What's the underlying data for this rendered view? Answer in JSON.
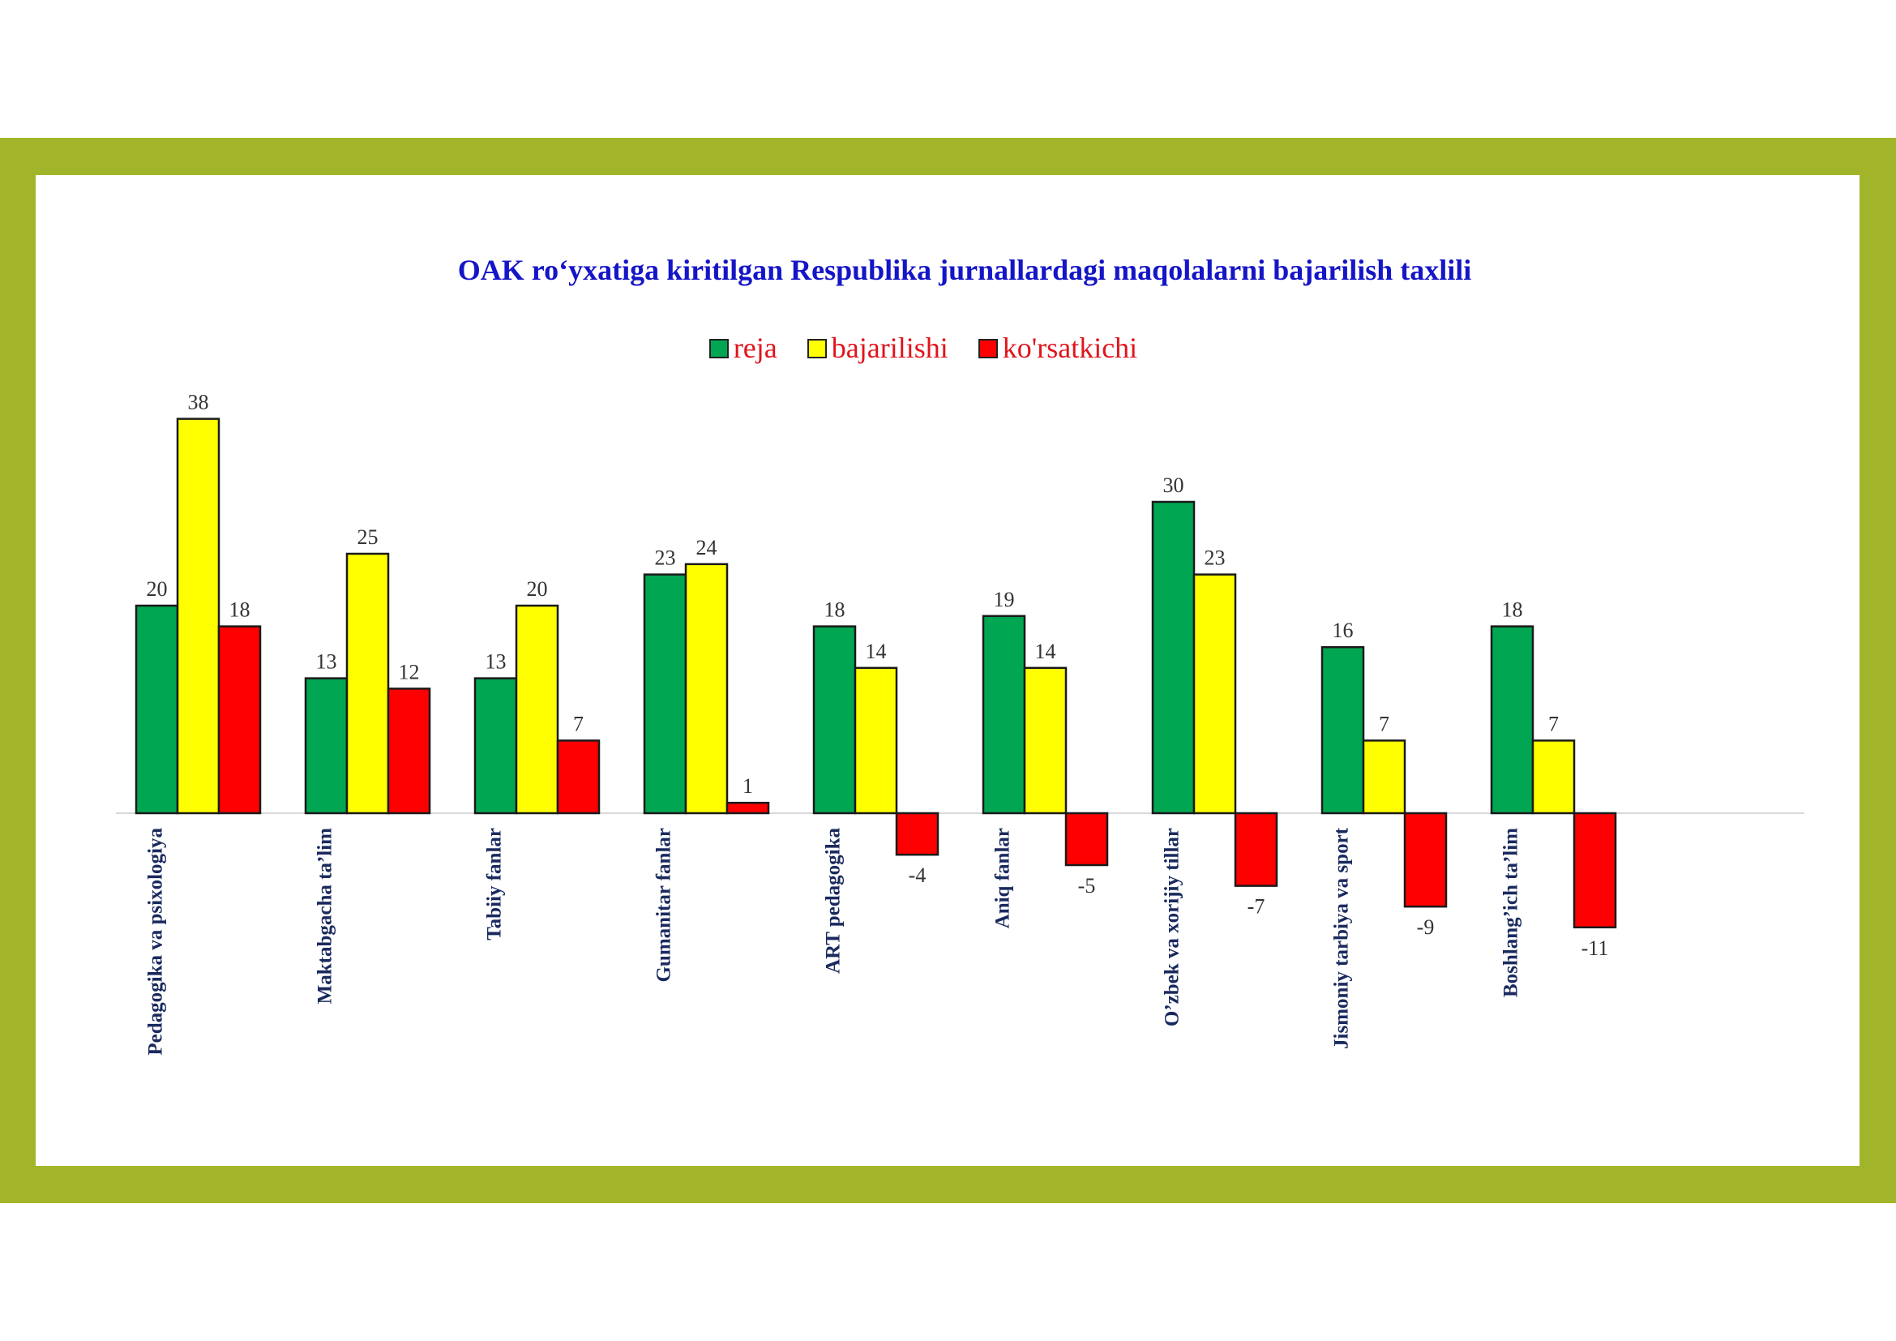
{
  "chart_data": {
    "type": "bar",
    "title": "OAK ro‘yxatiga kiritilgan Respublika jurnallardagi maqolalarni bajarilish taxlili",
    "categories": [
      "Pedagogika va psixologiya",
      "Maktabgacha ta’lim",
      "Tabiiy fanlar",
      "Gumanitar fanlar",
      "ART pedagogika",
      "Aniq fanlar",
      "O’zbek va xorijiy tillar",
      "Jismoniy tarbiya va sport",
      "Boshlang’ich ta’lim"
    ],
    "series": [
      {
        "name": "reja",
        "color": "#00a651",
        "values": [
          20,
          13,
          13,
          23,
          18,
          19,
          30,
          16,
          18
        ]
      },
      {
        "name": "bajarilishi",
        "color": "#ffff00",
        "values": [
          38,
          25,
          20,
          24,
          14,
          14,
          23,
          7,
          7
        ]
      },
      {
        "name": "ko'rsatkichi",
        "color": "#ff0000",
        "values": [
          18,
          12,
          7,
          1,
          -4,
          -5,
          -7,
          -9,
          -11
        ]
      }
    ],
    "data_labels": true,
    "legend_position": "top",
    "grid": false,
    "ylim": [
      -11,
      38
    ]
  }
}
